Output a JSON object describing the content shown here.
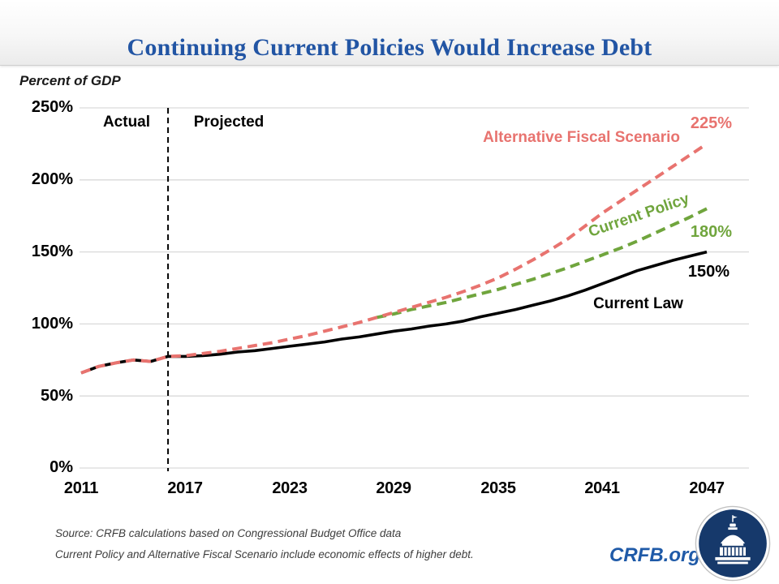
{
  "header": {
    "title": "Continuing Current Policies Would Increase Debt"
  },
  "chart": {
    "axis_title": "Percent of GDP",
    "y_ticks": [
      "250%",
      "200%",
      "150%",
      "100%",
      "50%",
      "0%"
    ],
    "x_ticks": [
      "2011",
      "2017",
      "2023",
      "2029",
      "2035",
      "2041",
      "2047"
    ],
    "region_labels": {
      "actual": "Actual",
      "projected": "Projected"
    },
    "series_labels": {
      "afs_name": "Alternative Fiscal Scenario",
      "afs_end": "225%",
      "cp_name": "Current Policy",
      "cp_end": "180%",
      "cl_end": "150%",
      "cl_name": "Current Law"
    },
    "colors": {
      "afs": "#E8736F",
      "cp": "#70A53D",
      "cl": "#000000",
      "grid": "#D9D9D9",
      "divider": "#000000",
      "title_blue": "#2255A4",
      "crfb_blue": "#1F5AA8",
      "logo_navy": "#16396B"
    }
  },
  "chart_data": {
    "type": "line",
    "title": "Continuing Current Policies Would Increase Debt",
    "ylabel": "Percent of GDP",
    "ylim": [
      0,
      250
    ],
    "y_tick_values": [
      250,
      200,
      150,
      100,
      50,
      0
    ],
    "x_range": [
      2011,
      2047
    ],
    "x_tick_years": [
      2011,
      2017,
      2023,
      2029,
      2035,
      2041,
      2047
    ],
    "divider_year": 2016,
    "grid": true,
    "legend_position": "inline-labels",
    "series": [
      {
        "name": "Current Law",
        "style": "solid",
        "color": "#000000",
        "start_year": 2011,
        "end_label": "150%",
        "values": [
          66,
          70.5,
          73,
          75,
          74,
          77.5,
          77.5,
          78,
          79,
          80.5,
          81.5,
          83,
          84.5,
          86,
          87.5,
          89.5,
          91,
          93,
          95,
          96.5,
          98.5,
          100,
          102,
          105,
          107.5,
          110,
          113,
          116,
          119.5,
          123.5,
          128,
          132.5,
          137,
          140.5,
          144,
          147,
          150
        ]
      },
      {
        "name": "Current Policy",
        "style": "dashed",
        "color": "#70A53D",
        "start_year": 2028,
        "end_label": "180%",
        "values": [
          104.5,
          107,
          110,
          112.5,
          115,
          118,
          121,
          124,
          127.5,
          131,
          135,
          139,
          143.5,
          148,
          152.5,
          157.5,
          163,
          168.5,
          174,
          180
        ]
      },
      {
        "name": "Alternative Fiscal Scenario",
        "style": "dashed",
        "color": "#E8736F",
        "start_year": 2011,
        "end_label": "225%",
        "values": [
          66,
          70.5,
          73,
          75,
          74,
          77.5,
          78,
          79.5,
          81,
          83,
          85,
          87,
          89.5,
          92,
          95,
          98,
          101,
          104.5,
          108,
          111.5,
          115,
          118.5,
          122.5,
          127,
          132,
          138,
          144.5,
          151.5,
          159,
          168,
          177,
          185,
          193,
          201,
          209,
          217,
          225
        ]
      }
    ]
  },
  "footer": {
    "source_line1": "Source: CRFB calculations based on Congressional Budget Office data",
    "source_line2": "Current Policy and Alternative Fiscal Scenario include economic effects of higher debt.",
    "site": "CRFB.org"
  }
}
